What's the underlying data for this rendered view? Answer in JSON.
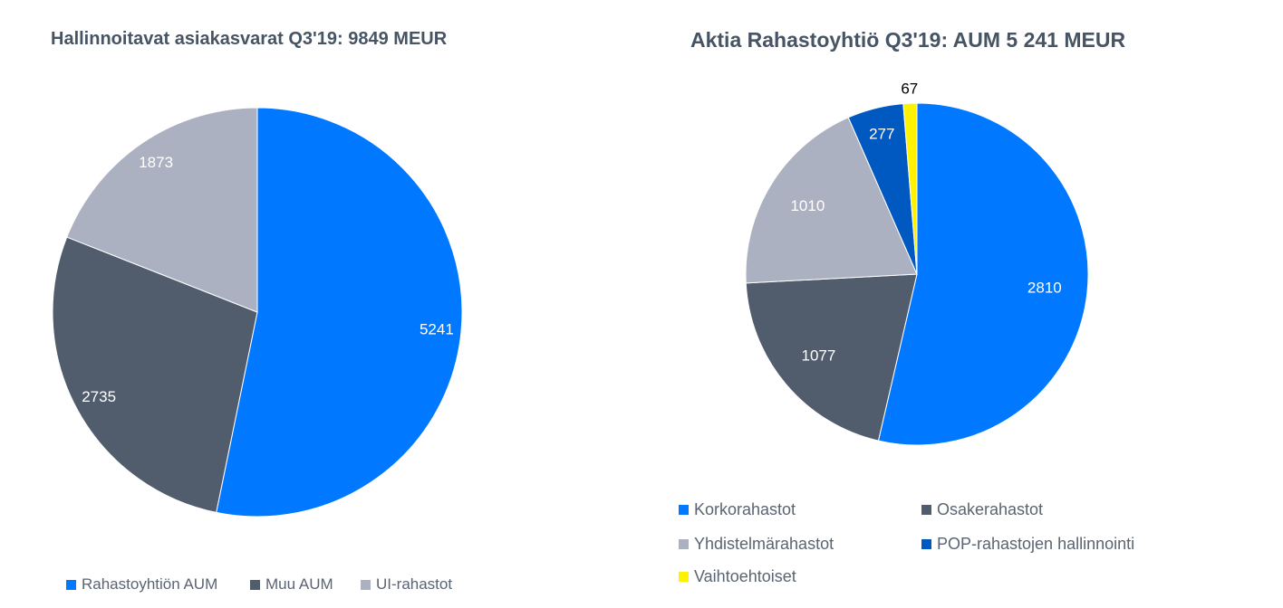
{
  "chart_data": [
    {
      "type": "pie",
      "title": "Hallinnoitavat asiakasvarat Q3'19: 9849 MEUR",
      "categories": [
        "Rahastoyhtiön AUM",
        "Muu AUM",
        "UI-rahastot"
      ],
      "values": [
        5241,
        2735,
        1873
      ],
      "labels": [
        "5241",
        "2735",
        "1873"
      ],
      "colors": [
        "#0078FF",
        "#515C6D",
        "#ACB1C1"
      ],
      "label_colors": [
        "#ffffff",
        "#ffffff",
        "#ffffff"
      ],
      "legend": "bottom"
    },
    {
      "type": "pie",
      "title": "Aktia Rahastoyhtiö Q3'19: AUM 5 241 MEUR",
      "categories": [
        "Korkorahastot",
        "Osakerahastot",
        "Yhdistelmärahastot",
        "POP-rahastojen hallinnointi",
        "Vaihtoehtoiset"
      ],
      "values": [
        2810,
        1077,
        1010,
        277,
        67
      ],
      "labels": [
        "2810",
        "1077",
        "1010",
        "277",
        "67"
      ],
      "colors": [
        "#0078FF",
        "#515C6D",
        "#ACB1C1",
        "#0059C0",
        "#FFF200"
      ],
      "label_colors": [
        "#ffffff",
        "#ffffff",
        "#ffffff",
        "#ffffff",
        "#000000"
      ],
      "legend": "bottom"
    }
  ]
}
